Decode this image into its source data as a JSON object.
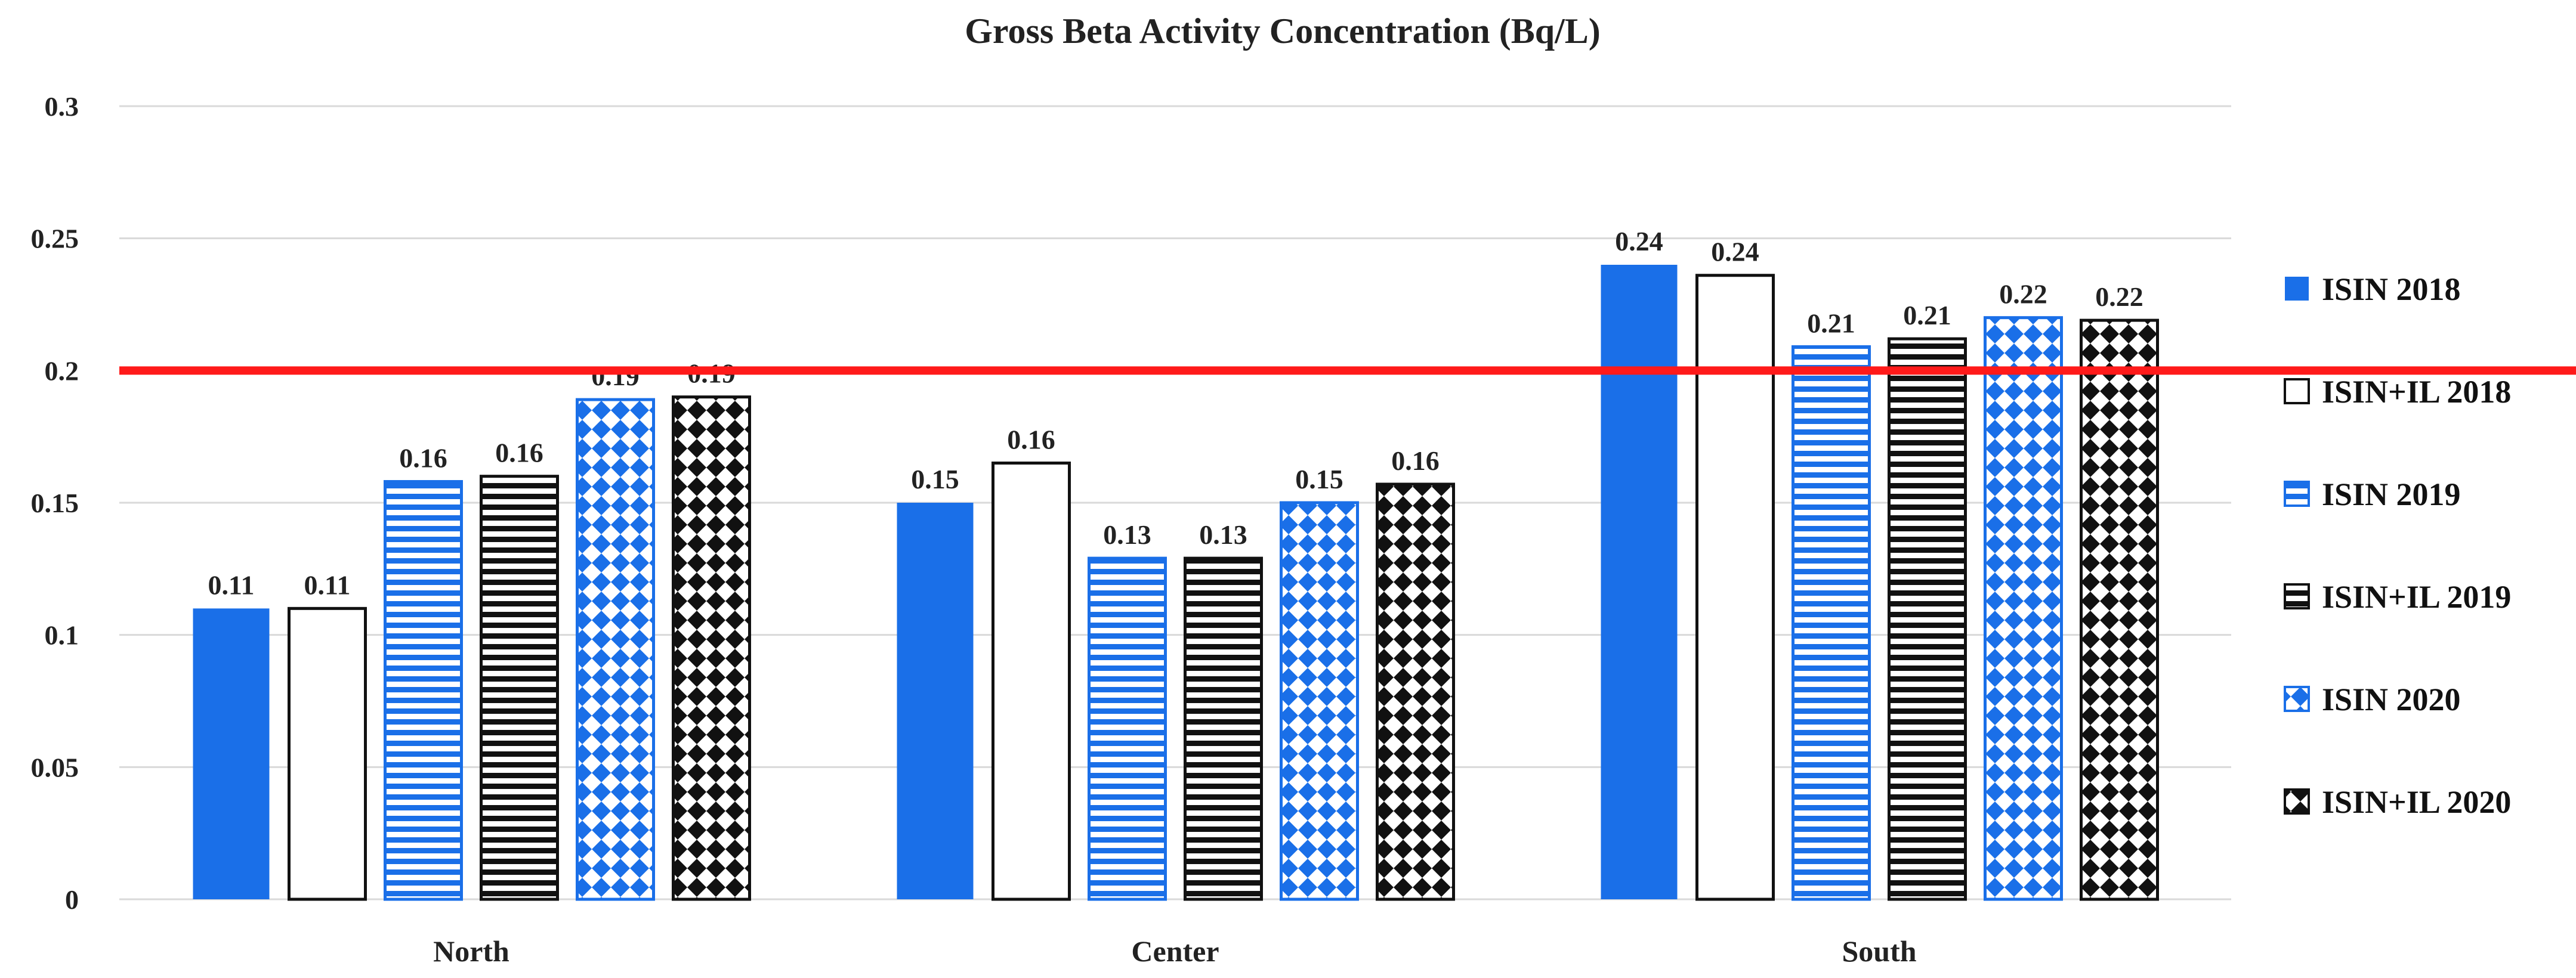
{
  "chart_data": {
    "type": "bar",
    "title": "Gross Beta Activity Concentration (Bq/L)",
    "xlabel": "",
    "ylabel": "",
    "ylim": [
      0,
      0.3
    ],
    "ytick_step": 0.05,
    "yticks": [
      "0",
      "0.05",
      "0.1",
      "0.15",
      "0.2",
      "0.25",
      "0.3"
    ],
    "categories": [
      "North",
      "Center",
      "South"
    ],
    "series": [
      {
        "name": "ISIN 2018",
        "pattern": "solid-blue",
        "values": [
          0.11,
          0.15,
          0.24
        ],
        "labels": [
          "0.11",
          "0.15",
          "0.24"
        ]
      },
      {
        "name": "ISIN+IL 2018",
        "pattern": "white",
        "values": [
          0.11,
          0.165,
          0.236
        ],
        "labels": [
          "0.11",
          "0.16",
          "0.24"
        ]
      },
      {
        "name": "ISIN 2019",
        "pattern": "blue-stripes",
        "values": [
          0.158,
          0.129,
          0.209
        ],
        "labels": [
          "0.16",
          "0.13",
          "0.21"
        ]
      },
      {
        "name": "ISIN+IL 2019",
        "pattern": "black-stripes",
        "values": [
          0.16,
          0.129,
          0.212
        ],
        "labels": [
          "0.16",
          "0.13",
          "0.21"
        ]
      },
      {
        "name": "ISIN 2020",
        "pattern": "blue-diamonds",
        "values": [
          0.189,
          0.15,
          0.22
        ],
        "labels": [
          "0.19",
          "0.15",
          "0.22"
        ]
      },
      {
        "name": "ISIN+IL 2020",
        "pattern": "black-diamonds",
        "values": [
          0.19,
          0.157,
          0.219
        ],
        "labels": [
          "0.19",
          "0.16",
          "0.22"
        ]
      }
    ],
    "reference_line": {
      "value": 0.2,
      "color": "#ff1a1a"
    },
    "grid": true,
    "legend_position": "right"
  },
  "colors": {
    "blue": "#1a6fe8",
    "black": "#111111",
    "grid": "#d9d9d9",
    "reference": "#ff1a1a"
  }
}
